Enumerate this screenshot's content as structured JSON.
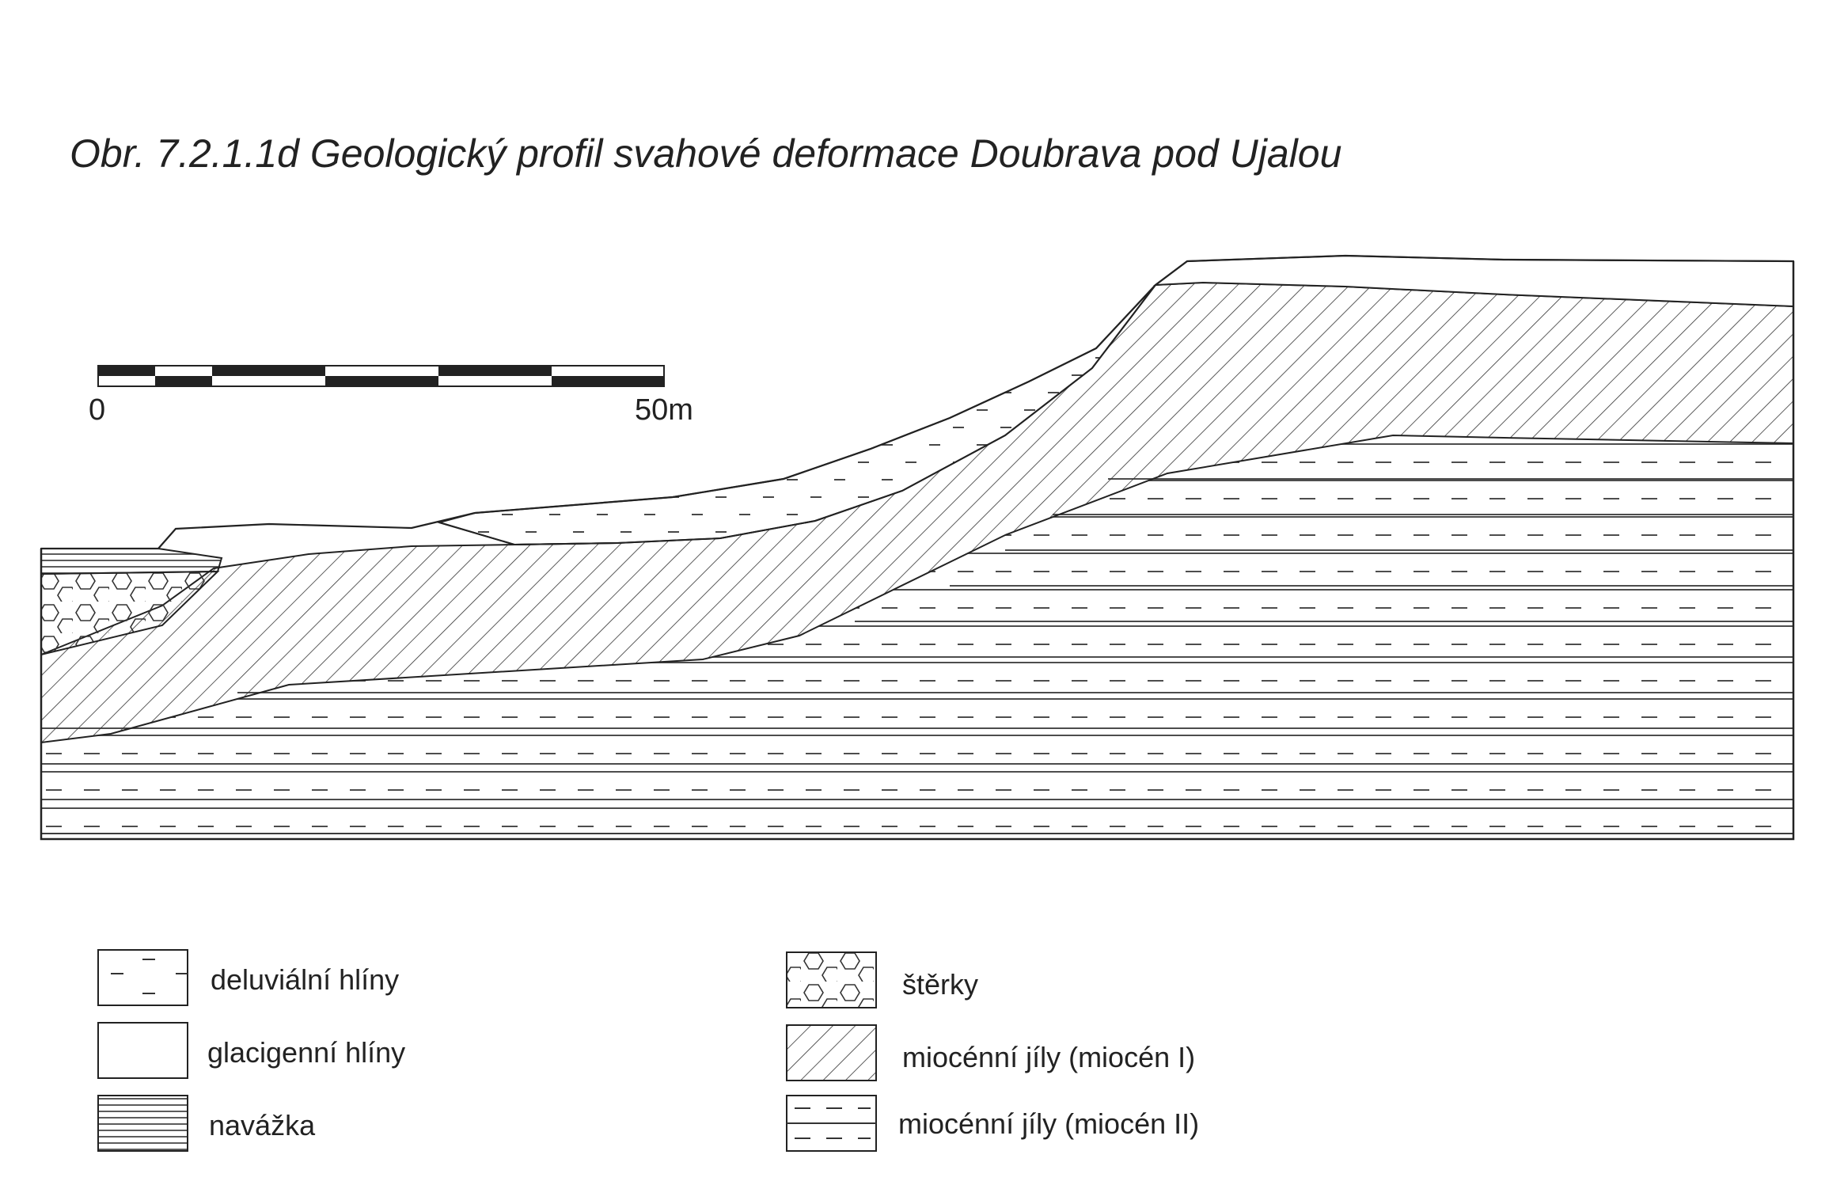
{
  "title": "Obr. 7.2.1.1d  Geologický profil svahové deformace Doubrava pod Ujalou",
  "scale_bar": {
    "start_label": "0",
    "end_label": "50m"
  },
  "legend": [
    {
      "id": "deluvialni",
      "label": "deluviální hlíny"
    },
    {
      "id": "glacigenni",
      "label": "glacigenní hlíny"
    },
    {
      "id": "navazka",
      "label": "navážka"
    },
    {
      "id": "sterky",
      "label": "štěrky"
    },
    {
      "id": "miocen1",
      "label": "miocénní jíly (miocén I)"
    },
    {
      "id": "miocen2",
      "label": "miocénní jíly (miocén II)"
    }
  ]
}
